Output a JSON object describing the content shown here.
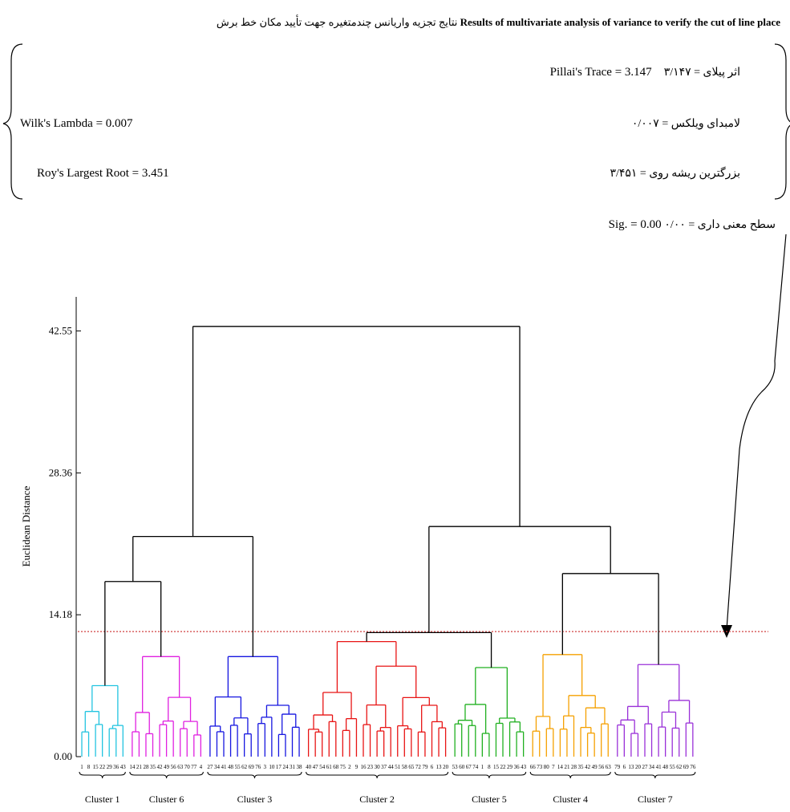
{
  "title_en": "Results of multivariate analysis of variance to verify the cut of line place",
  "title_fa": "نتایج تجزیه واریانس چندمتغیره جهت تأیید مکان خط برش",
  "stats": {
    "pillai_fa": "اثر پیلای = ٣/١۴٧",
    "pillai_en": "Pillai's Trace = 3.147",
    "wilks_en": "Wilk's Lambda = 0.007",
    "wilks_fa": "لامبدای ویلکس = ٠/٠٠٧",
    "roy_en": "Roy's Largest Root = 3.451",
    "roy_fa": "بزرگترین ریشه روی = ٣/۴۵١",
    "sig_en": "Sig. = 0.00",
    "sig_fa": "سطح معنی داری = ٠/٠٠"
  },
  "chart_data": {
    "type": "dendrogram",
    "ylabel": "Euclidean Distance",
    "yticks": [
      "0.00",
      "14.18",
      "28.36",
      "42.55"
    ],
    "ylim": [
      0,
      50
    ],
    "cut_height": 12.5,
    "cut_color": "#d04040",
    "clusters": [
      {
        "label": "Cluster 1",
        "color": "#22c4e0",
        "n": 7,
        "height": 7.1
      },
      {
        "label": "Cluster 6",
        "color": "#e020e0",
        "n": 11,
        "height": 10.0
      },
      {
        "label": "Cluster 3",
        "color": "#1616e0",
        "n": 14,
        "height": 10.0
      },
      {
        "label": "Cluster 2",
        "color": "#e81414",
        "n": 21,
        "height": 11.5
      },
      {
        "label": "Cluster 5",
        "color": "#20b020",
        "n": 11,
        "height": 8.9
      },
      {
        "label": "Cluster 4",
        "color": "#f5a000",
        "n": 12,
        "height": 10.2
      },
      {
        "label": "Cluster 7",
        "color": "#9a30d8",
        "n": 12,
        "height": 9.2
      }
    ],
    "merges": [
      {
        "left": "Cluster 1",
        "right": "Cluster 6",
        "height": 17.5
      },
      {
        "left": "Cluster 1+6",
        "right": "Cluster 3",
        "height": 22.0
      },
      {
        "left": "Cluster 2",
        "right": "Cluster 5",
        "height": 12.4
      },
      {
        "left": "Cluster 4",
        "right": "Cluster 7",
        "height": 18.3
      },
      {
        "left": "Cluster 2+5",
        "right": "Cluster 4+7",
        "height": 23.0
      },
      {
        "left": "Cluster 1+6+3",
        "right": "Cluster 2+5+4+7",
        "height": 43.0
      }
    ]
  }
}
